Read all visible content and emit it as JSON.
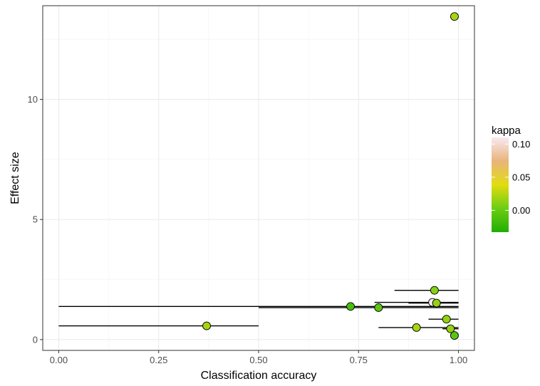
{
  "chart_data": {
    "type": "scatter",
    "xlabel": "Classification accuracy",
    "ylabel": "Effect size",
    "xlim": [
      -0.04,
      1.04
    ],
    "ylim": [
      -0.45,
      13.9
    ],
    "x_ticks": [
      "0.00",
      "0.25",
      "0.50",
      "0.75",
      "1.00"
    ],
    "x_tick_values": [
      0,
      0.25,
      0.5,
      0.75,
      1.0
    ],
    "y_ticks": [
      "0",
      "5",
      "10"
    ],
    "y_tick_values": [
      0,
      5,
      10
    ],
    "grid": true,
    "legend": {
      "title": "kappa",
      "position": "right",
      "labels": [
        "0.10",
        "0.05",
        "0.00"
      ],
      "label_values": [
        0.1,
        0.05,
        0.0
      ],
      "range": [
        -0.033,
        0.11
      ],
      "colors": [
        "#F8E9F2",
        "#E9B47A",
        "#E2DC10",
        "#6CCD12",
        "#21AE05"
      ]
    },
    "points": [
      {
        "x": 0.99,
        "y": 13.45,
        "xmin": null,
        "xmax": null,
        "kappa": 0.02
      },
      {
        "x": 0.94,
        "y": 2.05,
        "xmin": 0.84,
        "xmax": 1.0,
        "kappa": 0.01
      },
      {
        "x": 0.935,
        "y": 1.55,
        "xmin": 0.79,
        "xmax": 1.0,
        "kappa": 0.11
      },
      {
        "x": 0.945,
        "y": 1.52,
        "xmin": 0.875,
        "xmax": 1.0,
        "kappa": 0.015
      },
      {
        "x": 0.73,
        "y": 1.38,
        "xmin": 0.0,
        "xmax": 1.0,
        "kappa": -0.015
      },
      {
        "x": 0.8,
        "y": 1.33,
        "xmin": 0.5,
        "xmax": 1.0,
        "kappa": -0.005
      },
      {
        "x": 0.97,
        "y": 0.85,
        "xmin": 0.925,
        "xmax": 1.0,
        "kappa": 0.015
      },
      {
        "x": 0.37,
        "y": 0.57,
        "xmin": 0.0,
        "xmax": 0.5,
        "kappa": 0.02
      },
      {
        "x": 0.895,
        "y": 0.5,
        "xmin": 0.8,
        "xmax": 1.0,
        "kappa": 0.02
      },
      {
        "x": 0.98,
        "y": 0.45,
        "xmin": 0.96,
        "xmax": 1.0,
        "kappa": 0.015
      },
      {
        "x": 0.99,
        "y": 0.17,
        "xmin": null,
        "xmax": null,
        "kappa": -0.005
      }
    ]
  }
}
